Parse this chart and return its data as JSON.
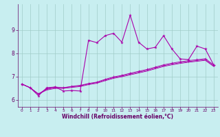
{
  "background_color": "#c8eef0",
  "grid_color": "#a0ccc8",
  "line_color": "#aa00aa",
  "xlabel": "Windchill (Refroidissement éolien,°C)",
  "xlabel_color": "#660066",
  "axis_bg": "#660066",
  "tick_color": "#660066",
  "xlim": [
    -0.5,
    23.5
  ],
  "ylim": [
    5.7,
    10.1
  ],
  "yticks": [
    6,
    7,
    8,
    9
  ],
  "xticks": [
    0,
    1,
    2,
    3,
    4,
    5,
    6,
    7,
    8,
    9,
    10,
    11,
    12,
    13,
    14,
    15,
    16,
    17,
    18,
    19,
    20,
    21,
    22,
    23
  ],
  "series1_x": [
    0,
    1,
    2,
    3,
    4,
    5,
    6,
    7,
    8,
    9,
    10,
    11,
    12,
    13,
    14,
    15,
    16,
    17,
    18,
    19,
    20,
    21,
    22,
    23
  ],
  "series1_y": [
    6.68,
    6.52,
    6.18,
    6.52,
    6.55,
    6.38,
    6.4,
    6.38,
    8.55,
    8.45,
    8.75,
    8.85,
    8.47,
    9.62,
    8.47,
    8.18,
    8.25,
    8.75,
    8.18,
    7.75,
    7.73,
    8.3,
    8.18,
    7.5
  ],
  "series2_x": [
    0,
    1,
    2,
    3,
    4,
    5,
    6,
    7,
    8,
    9,
    10,
    11,
    12,
    13,
    14,
    15,
    16,
    17,
    18,
    19,
    20,
    21,
    22,
    23
  ],
  "series2_y": [
    6.68,
    6.52,
    6.25,
    6.48,
    6.55,
    6.52,
    6.58,
    6.62,
    6.7,
    6.76,
    6.88,
    6.98,
    7.05,
    7.14,
    7.22,
    7.3,
    7.4,
    7.5,
    7.57,
    7.63,
    7.68,
    7.72,
    7.76,
    7.5
  ],
  "series3_x": [
    0,
    1,
    2,
    3,
    4,
    5,
    6,
    7,
    8,
    9,
    10,
    11,
    12,
    13,
    14,
    15,
    16,
    17,
    18,
    19,
    20,
    21,
    22,
    23
  ],
  "series3_y": [
    6.68,
    6.52,
    6.25,
    6.45,
    6.52,
    6.52,
    6.56,
    6.6,
    6.68,
    6.74,
    6.85,
    6.95,
    7.02,
    7.1,
    7.18,
    7.26,
    7.36,
    7.46,
    7.53,
    7.59,
    7.64,
    7.68,
    7.72,
    7.46
  ],
  "series4_x": [
    0,
    1,
    2,
    3,
    4,
    5,
    6,
    7,
    8,
    9,
    10,
    11,
    12,
    13,
    14,
    15,
    16,
    17,
    18,
    19,
    20,
    21,
    22,
    23
  ],
  "series4_y": [
    6.68,
    6.52,
    6.25,
    6.42,
    6.49,
    6.49,
    6.53,
    6.57,
    6.65,
    6.71,
    6.82,
    6.92,
    6.99,
    7.07,
    7.15,
    7.23,
    7.33,
    7.43,
    7.5,
    7.56,
    7.61,
    7.65,
    7.69,
    7.43
  ]
}
